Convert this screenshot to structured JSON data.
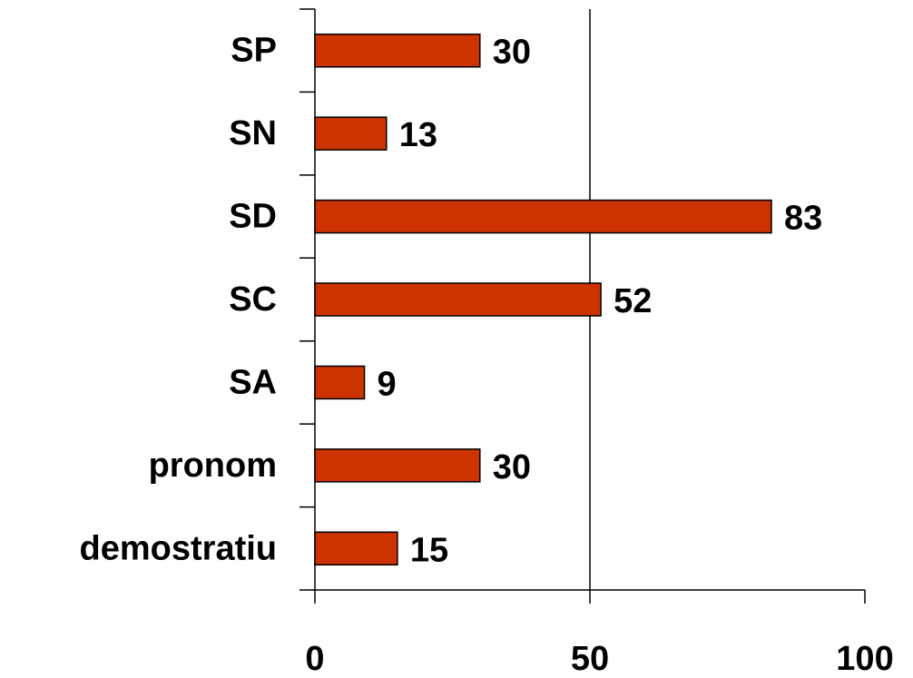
{
  "chart_data": {
    "type": "bar",
    "orientation": "horizontal",
    "categories": [
      "SP",
      "SN",
      "SD",
      "SC",
      "SA",
      "pronom",
      "demostratiu"
    ],
    "values": [
      30,
      13,
      83,
      52,
      9,
      30,
      15
    ],
    "color": "#cc3300",
    "xlim": [
      0,
      100
    ],
    "xticks": [
      0,
      50,
      100
    ],
    "grid": true
  }
}
